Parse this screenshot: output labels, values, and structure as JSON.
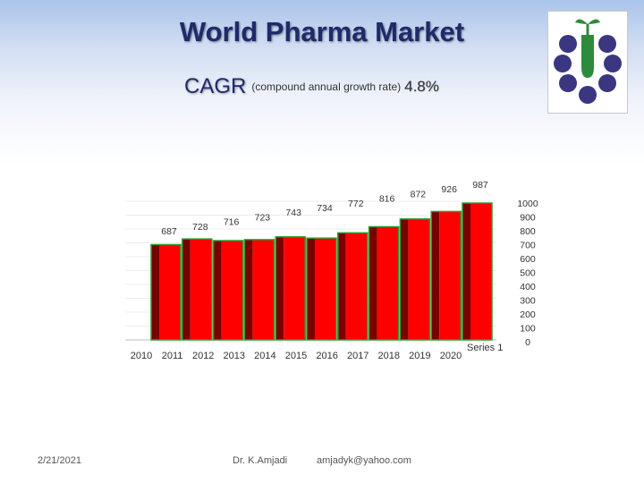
{
  "slide": {
    "title": "World Pharma Market",
    "subtitle_main": "CAGR",
    "subtitle_detail": "(compound annual growth rate)",
    "subtitle_rate": "4.8%"
  },
  "footer": {
    "date": "2/21/2021",
    "author": "Dr. K.Amjadi",
    "email": "amjadyk@yahoo.com"
  },
  "colors": {
    "bar_front": "#ff0000",
    "bar_side": "#7a0000",
    "bar_border": "#2e9a2e",
    "logo_purple": "#3a3680",
    "logo_green": "#2e8b3e"
  },
  "chart_data": {
    "type": "bar",
    "title": "",
    "categories": [
      "2010",
      "2011",
      "2012",
      "2013",
      "2014",
      "2015",
      "2016",
      "2017",
      "2018",
      "2019",
      "2020"
    ],
    "series": [
      {
        "name": "Series 1",
        "values": [
          687,
          728,
          716,
          723,
          743,
          734,
          772,
          816,
          872,
          926,
          987
        ]
      }
    ],
    "y_tick_labels": [
      "1000",
      "900",
      "800",
      "700",
      "600",
      "500",
      "400",
      "300",
      "200",
      "100",
      "0"
    ],
    "ylim": [
      0,
      1000
    ],
    "y_axis_position": "right",
    "legend_position": "right",
    "grid": true,
    "xlabel": "",
    "ylabel": ""
  }
}
